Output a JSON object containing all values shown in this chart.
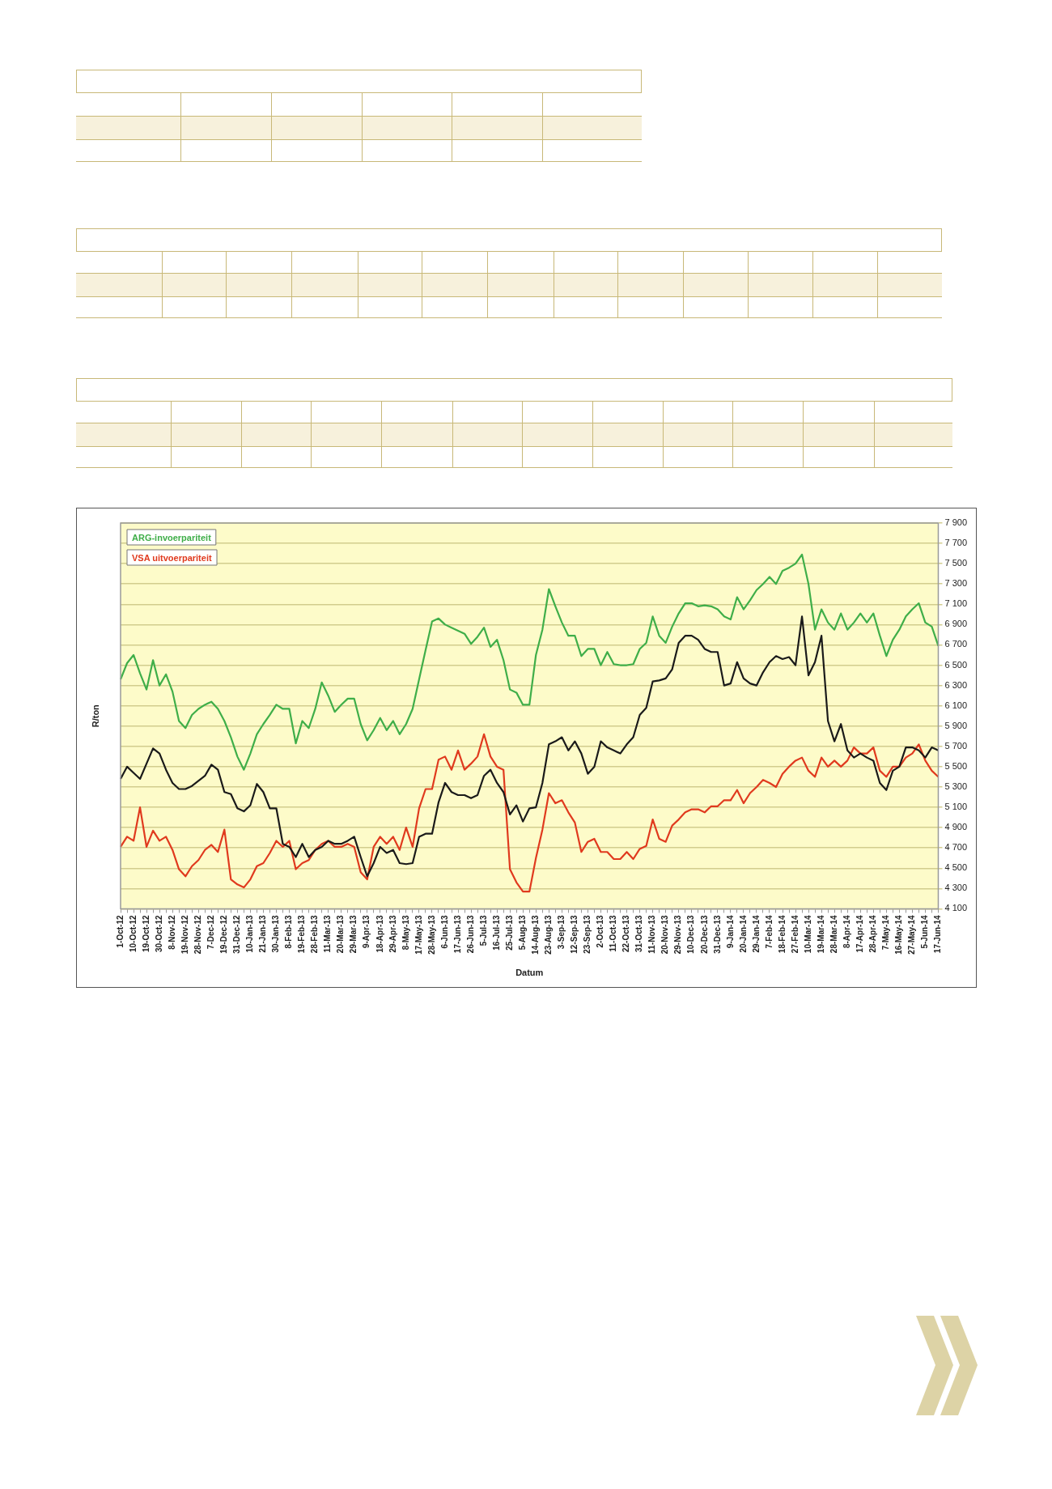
{
  "chart_data": {
    "type": "line",
    "xlabel": "Datum",
    "ylabel": "R/ton",
    "categories": [
      "1-Oct-12",
      null,
      "10-Oct-12",
      null,
      "19-Oct-12",
      null,
      "30-Oct-12",
      null,
      "8-Nov-12",
      null,
      "19-Nov-12",
      null,
      "28-Nov-12",
      null,
      "7-Dec-12",
      null,
      "19-Dec-12",
      null,
      "31-Dec-12",
      null,
      "10-Jan-13",
      null,
      "21-Jan-13",
      null,
      "30-Jan-13",
      null,
      "8-Feb-13",
      null,
      "19-Feb-13",
      null,
      "28-Feb-13",
      null,
      "11-Mar-13",
      null,
      "20-Mar-13",
      null,
      "29-Mar-13",
      null,
      "9-Apr-13",
      null,
      "18-Apr-13",
      null,
      "29-Apr-13",
      null,
      "8-May-13",
      null,
      "17-May-13",
      null,
      "28-May-13",
      null,
      "6-Jun-13",
      null,
      "17-Jun-13",
      null,
      "26-Jun-13",
      null,
      "5-Jul-13",
      null,
      "16-Jul-13",
      null,
      "25-Jul-13",
      null,
      "5-Aug-13",
      null,
      "14-Aug-13",
      null,
      "23-Aug-13",
      null,
      "3-Sep-13",
      null,
      "12-Sep-13",
      null,
      "23-Sep-13",
      null,
      "2-Oct-13",
      null,
      "11-Oct-13",
      null,
      "22-Oct-13",
      null,
      "31-Oct-13",
      null,
      "11-Nov-13",
      null,
      "20-Nov-13",
      null,
      "29-Nov-13",
      null,
      "10-Dec-13",
      null,
      "20-Dec-13",
      null,
      "31-Dec-13",
      null,
      "9-Jan-14",
      null,
      "20-Jan-14",
      null,
      "29-Jan-14",
      null,
      "7-Feb-14",
      null,
      "18-Feb-14",
      null,
      "27-Feb-14",
      null,
      "10-Mar-14",
      null,
      "19-Mar-14",
      null,
      "28-Mar-14",
      null,
      "8-Apr-14",
      null,
      "17-Apr-14",
      null,
      "28-Apr-14",
      null,
      "7-May-14",
      null,
      "16-May-14",
      null,
      "27-May-14",
      null,
      "5-Jun-14",
      null,
      "17-Jun-14"
    ],
    "series": [
      {
        "name": "ARG-invoerpariteit",
        "color": "#3fae49",
        "values": [
          6360,
          6520,
          6600,
          6420,
          6260,
          6550,
          6300,
          6410,
          6240,
          5950,
          5880,
          6010,
          6070,
          6110,
          6140,
          6070,
          5950,
          5790,
          5600,
          5470,
          5630,
          5820,
          5920,
          6010,
          6110,
          6070,
          6070,
          5730,
          5950,
          5880,
          6070,
          6330,
          6200,
          6040,
          6110,
          6170,
          6170,
          5920,
          5760,
          5860,
          5980,
          5860,
          5950,
          5820,
          5920,
          6070,
          6360,
          6650,
          6930,
          6960,
          6900,
          6870,
          6840,
          6810,
          6710,
          6780,
          6870,
          6680,
          6750,
          6550,
          6260,
          6230,
          6110,
          6110,
          6600,
          6850,
          7250,
          7080,
          6920,
          6790,
          6790,
          6590,
          6660,
          6660,
          6500,
          6630,
          6510,
          6500,
          6500,
          6510,
          6660,
          6720,
          6980,
          6790,
          6720,
          6880,
          7010,
          7110,
          7110,
          7080,
          7090,
          7080,
          7050,
          6980,
          6950,
          7170,
          7050,
          7140,
          7240,
          7300,
          7370,
          7300,
          7430,
          7460,
          7500,
          7590,
          7300,
          6850,
          7050,
          6920,
          6850,
          7010,
          6850,
          6920,
          7010,
          6920,
          7010,
          6790,
          6590,
          6750,
          6850,
          6980,
          7050,
          7110,
          6920,
          6880,
          6690
        ]
      },
      {
        "color": "#1a1a1a",
        "values": [
          5380,
          5500,
          5440,
          5380,
          5530,
          5680,
          5630,
          5470,
          5340,
          5280,
          5280,
          5310,
          5360,
          5410,
          5520,
          5470,
          5250,
          5230,
          5090,
          5060,
          5120,
          5330,
          5250,
          5090,
          5090,
          4740,
          4710,
          4610,
          4740,
          4610,
          4680,
          4710,
          4770,
          4740,
          4740,
          4770,
          4810,
          4610,
          4420,
          4550,
          4710,
          4650,
          4680,
          4550,
          4540,
          4550,
          4810,
          4840,
          4840,
          5150,
          5340,
          5250,
          5220,
          5220,
          5190,
          5220,
          5410,
          5470,
          5340,
          5250,
          5030,
          5120,
          4960,
          5090,
          5100,
          5340,
          5720,
          5750,
          5790,
          5660,
          5750,
          5630,
          5430,
          5500,
          5750,
          5690,
          5660,
          5630,
          5720,
          5790,
          6010,
          6080,
          6340,
          6350,
          6370,
          6460,
          6720,
          6790,
          6790,
          6750,
          6660,
          6630,
          6630,
          6300,
          6320,
          6530,
          6370,
          6320,
          6300,
          6430,
          6530,
          6590,
          6560,
          6580,
          6500,
          6980,
          6400,
          6530,
          6790,
          5950,
          5750,
          5920,
          5660,
          5590,
          5630,
          5590,
          5560,
          5340,
          5270,
          5460,
          5500,
          5690,
          5690,
          5660,
          5590,
          5690,
          5660
        ]
      },
      {
        "name": "VSA uitvoerpariteit",
        "color": "#e03a1e",
        "values": [
          4710,
          4810,
          4770,
          5100,
          4710,
          4870,
          4770,
          4810,
          4680,
          4490,
          4420,
          4520,
          4580,
          4680,
          4730,
          4660,
          4880,
          4390,
          4340,
          4310,
          4390,
          4520,
          4550,
          4650,
          4770,
          4710,
          4770,
          4490,
          4550,
          4580,
          4680,
          4740,
          4770,
          4710,
          4710,
          4740,
          4710,
          4460,
          4390,
          4710,
          4810,
          4740,
          4810,
          4680,
          4900,
          4710,
          5090,
          5280,
          5280,
          5570,
          5600,
          5470,
          5660,
          5470,
          5530,
          5600,
          5820,
          5600,
          5500,
          5470,
          4490,
          4360,
          4270,
          4270,
          4600,
          4880,
          5240,
          5140,
          5170,
          5050,
          4950,
          4660,
          4760,
          4790,
          4660,
          4660,
          4590,
          4590,
          4660,
          4590,
          4690,
          4720,
          4980,
          4790,
          4760,
          4920,
          4980,
          5050,
          5080,
          5080,
          5050,
          5110,
          5110,
          5170,
          5170,
          5270,
          5140,
          5240,
          5300,
          5370,
          5340,
          5300,
          5430,
          5500,
          5560,
          5590,
          5460,
          5400,
          5590,
          5500,
          5560,
          5500,
          5560,
          5690,
          5630,
          5630,
          5690,
          5460,
          5400,
          5500,
          5500,
          5590,
          5630,
          5720,
          5560,
          5460,
          5400
        ]
      }
    ],
    "ylim": [
      4100,
      7900
    ],
    "yticks": [
      {
        "value": 4100,
        "label": "4 100"
      },
      {
        "value": 4300,
        "label": "4 300"
      },
      {
        "value": 4500,
        "label": "4 500"
      },
      {
        "value": 4700,
        "label": "4 700"
      },
      {
        "value": 4900,
        "label": "4 900"
      },
      {
        "value": 5100,
        "label": "5 100"
      },
      {
        "value": 5300,
        "label": "5 300"
      },
      {
        "value": 5500,
        "label": "5 500"
      },
      {
        "value": 5700,
        "label": "5 700"
      },
      {
        "value": 5900,
        "label": "5 900"
      },
      {
        "value": 6100,
        "label": "6 100"
      },
      {
        "value": 6300,
        "label": "6 300"
      },
      {
        "value": 6500,
        "label": "6 500"
      },
      {
        "value": 6700,
        "label": "6 700"
      },
      {
        "value": 6900,
        "label": "6 900"
      },
      {
        "value": 7100,
        "label": "7 100"
      },
      {
        "value": 7300,
        "label": "7 300"
      },
      {
        "value": 7500,
        "label": "7 500"
      },
      {
        "value": 7700,
        "label": "7 700"
      },
      {
        "value": 7900,
        "label": "7 900"
      }
    ],
    "grid": "y",
    "legend": "top left",
    "marker": "none"
  }
}
